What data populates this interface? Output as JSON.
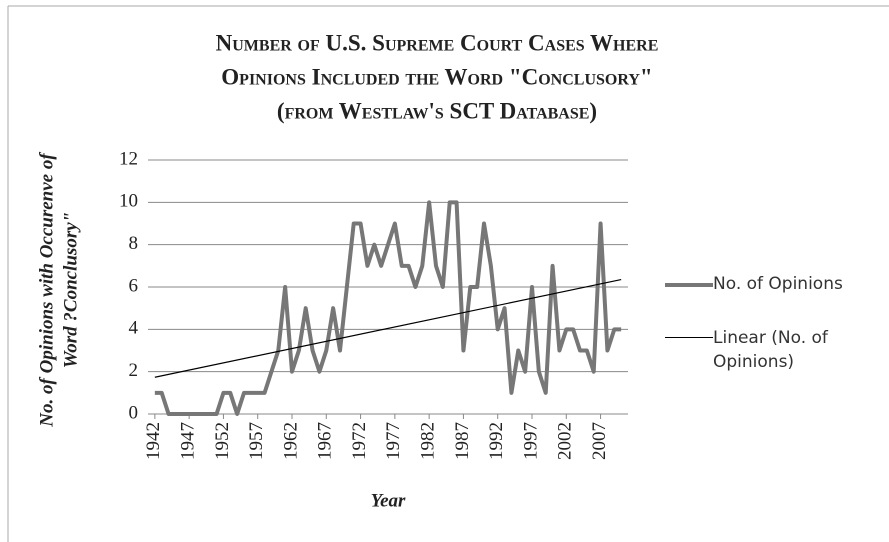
{
  "chart_data": {
    "type": "line",
    "title": [
      "Number of U.S. Supreme Court Cases Where",
      "Opinions Included the Word \"Conclusory\"",
      "(from Westlaw's SCT Database)"
    ],
    "y_label": [
      "No. of Opinions with Occurenve of",
      "Word ?Conclusory\""
    ],
    "x_label": "Year",
    "x": [
      1942,
      1943,
      1944,
      1945,
      1946,
      1947,
      1948,
      1949,
      1950,
      1951,
      1952,
      1953,
      1954,
      1955,
      1956,
      1957,
      1958,
      1959,
      1960,
      1961,
      1962,
      1963,
      1964,
      1965,
      1966,
      1967,
      1968,
      1969,
      1970,
      1971,
      1972,
      1973,
      1974,
      1975,
      1976,
      1977,
      1978,
      1979,
      1980,
      1981,
      1982,
      1983,
      1984,
      1985,
      1986,
      1987,
      1988,
      1989,
      1990,
      1991,
      1992,
      1993,
      1994,
      1995,
      1996,
      1997,
      1998,
      1999,
      2000,
      2001,
      2002,
      2003,
      2004,
      2005,
      2006,
      2007,
      2008,
      2009,
      2010
    ],
    "series": [
      {
        "name": "No. of Opinions",
        "color": "#777777",
        "values": [
          1,
          1,
          0,
          0,
          0,
          0,
          0,
          0,
          0,
          0,
          1,
          1,
          0,
          1,
          1,
          1,
          1,
          2,
          3,
          6,
          2,
          3,
          5,
          3,
          2,
          3,
          5,
          3,
          6,
          9,
          9,
          7,
          8,
          7,
          8,
          9,
          7,
          7,
          6,
          7,
          10,
          7,
          6,
          10,
          10,
          3,
          6,
          6,
          9,
          7,
          4,
          5,
          1,
          3,
          2,
          6,
          2,
          1,
          7,
          3,
          4,
          4,
          3,
          3,
          2,
          9,
          3,
          4,
          4
        ]
      }
    ],
    "trend_name": "Linear (No. of Opinions)",
    "trend_color": "#000000",
    "xlim": [
      1941,
      2011
    ],
    "xticks": [
      1942,
      1947,
      1952,
      1957,
      1962,
      1967,
      1972,
      1977,
      1982,
      1987,
      1992,
      1997,
      2002,
      2007
    ],
    "ylim": [
      0,
      12
    ],
    "yticks": [
      0,
      2,
      4,
      6,
      8,
      10,
      12
    ],
    "grid": true
  }
}
